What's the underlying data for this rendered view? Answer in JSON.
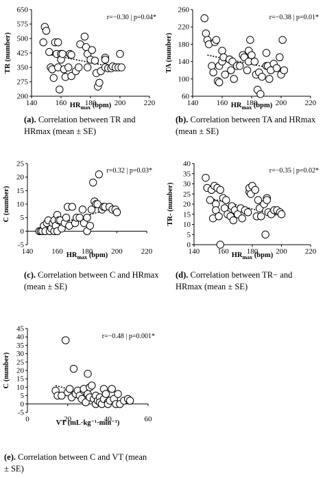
{
  "chart_data": [
    {
      "id": "a",
      "type": "scatter",
      "ylabel": "TR (number)",
      "xlabel_main": "HR",
      "xlabel_sub": "max",
      "xlabel_unit": " (bpm)",
      "xlim": [
        140,
        220
      ],
      "ylim": [
        200,
        650
      ],
      "x_ticks": [
        140,
        160,
        180,
        200,
        220
      ],
      "y_ticks": [
        200,
        275,
        350,
        425,
        500,
        575,
        650
      ],
      "stat": "r=−0.30 | p=0.04*",
      "trend": [
        [
          150,
          420
        ],
        [
          200,
          345
        ]
      ],
      "caption_label": "(a).",
      "caption_text": "Correlation between TR and HRmax (mean ± SE)",
      "points": [
        [
          148,
          480
        ],
        [
          149,
          560
        ],
        [
          150,
          540
        ],
        [
          152,
          430
        ],
        [
          153,
          350
        ],
        [
          154,
          340
        ],
        [
          155,
          295
        ],
        [
          156,
          480
        ],
        [
          157,
          420
        ],
        [
          158,
          480
        ],
        [
          158,
          350
        ],
        [
          159,
          235
        ],
        [
          160,
          420
        ],
        [
          160,
          390
        ],
        [
          161,
          420
        ],
        [
          162,
          340
        ],
        [
          163,
          300
        ],
        [
          165,
          350
        ],
        [
          166,
          420
        ],
        [
          167,
          415
        ],
        [
          167,
          305
        ],
        [
          170,
          330
        ],
        [
          172,
          350
        ],
        [
          173,
          470
        ],
        [
          176,
          510
        ],
        [
          177,
          455
        ],
        [
          178,
          420
        ],
        [
          178,
          350
        ],
        [
          180,
          390
        ],
        [
          181,
          440
        ],
        [
          183,
          385
        ],
        [
          184,
          320
        ],
        [
          185,
          250
        ],
        [
          186,
          270
        ],
        [
          187,
          330
        ],
        [
          190,
          400
        ],
        [
          190,
          390
        ],
        [
          190,
          350
        ],
        [
          192,
          345
        ],
        [
          194,
          345
        ],
        [
          195,
          355
        ],
        [
          197,
          350
        ],
        [
          199,
          350
        ],
        [
          200,
          420
        ],
        [
          201,
          350
        ]
      ]
    },
    {
      "id": "b",
      "type": "scatter",
      "ylabel": "TA (number)",
      "xlabel_main": "HR",
      "xlabel_sub": "max",
      "xlabel_unit": " (bpm)",
      "xlim": [
        140,
        220
      ],
      "ylim": [
        60,
        260
      ],
      "x_ticks": [
        140,
        160,
        180,
        200,
        220
      ],
      "y_ticks": [
        60,
        100,
        140,
        180,
        220,
        260
      ],
      "stat": "r=−0.38 | p=0.01*",
      "trend": [
        [
          150,
          155
        ],
        [
          200,
          120
        ]
      ],
      "caption_label": "(b).",
      "caption_text": "Correlation between TA and HRmax (mean ± SE)",
      "points": [
        [
          148,
          240
        ],
        [
          149,
          205
        ],
        [
          150,
          190
        ],
        [
          151,
          180
        ],
        [
          153,
          130
        ],
        [
          154,
          115
        ],
        [
          155,
          185
        ],
        [
          156,
          190
        ],
        [
          157,
          95
        ],
        [
          158,
          130
        ],
        [
          158,
          92
        ],
        [
          160,
          165
        ],
        [
          160,
          140
        ],
        [
          161,
          150
        ],
        [
          162,
          110
        ],
        [
          165,
          145
        ],
        [
          166,
          120
        ],
        [
          167,
          140
        ],
        [
          168,
          100
        ],
        [
          170,
          130
        ],
        [
          172,
          130
        ],
        [
          174,
          155
        ],
        [
          175,
          150
        ],
        [
          177,
          120
        ],
        [
          178,
          165
        ],
        [
          178,
          140
        ],
        [
          179,
          190
        ],
        [
          180,
          155
        ],
        [
          182,
          140
        ],
        [
          183,
          110
        ],
        [
          184,
          75
        ],
        [
          185,
          115
        ],
        [
          186,
          65
        ],
        [
          187,
          105
        ],
        [
          190,
          160
        ],
        [
          190,
          130
        ],
        [
          191,
          130
        ],
        [
          192,
          100
        ],
        [
          193,
          120
        ],
        [
          195,
          135
        ],
        [
          197,
          125
        ],
        [
          199,
          150
        ],
        [
          200,
          110
        ],
        [
          201,
          190
        ],
        [
          202,
          120
        ]
      ]
    },
    {
      "id": "c",
      "type": "scatter",
      "ylabel": "C (number)",
      "xlabel_main": "HR",
      "xlabel_sub": "max",
      "xlabel_unit": " (bpm)",
      "xlim": [
        140,
        220
      ],
      "ylim": [
        -5,
        25
      ],
      "x_ticks": [
        140,
        160,
        180,
        200,
        220
      ],
      "y_ticks": [
        -5,
        0,
        5,
        10,
        15,
        20,
        25
      ],
      "stat": "r=0.32 | p=0.03*",
      "trend": [
        [
          150,
          1
        ],
        [
          200,
          9
        ]
      ],
      "caption_label": "(c).",
      "caption_text": "Correlation between C and HRmax (mean ± SE)",
      "points": [
        [
          148,
          0
        ],
        [
          149,
          0
        ],
        [
          150,
          0
        ],
        [
          151,
          2
        ],
        [
          152,
          0
        ],
        [
          153,
          3
        ],
        [
          154,
          4
        ],
        [
          155,
          0
        ],
        [
          156,
          1
        ],
        [
          157,
          3
        ],
        [
          158,
          4
        ],
        [
          158,
          0
        ],
        [
          159,
          2
        ],
        [
          160,
          6
        ],
        [
          160,
          0
        ],
        [
          161,
          4
        ],
        [
          162,
          4
        ],
        [
          163,
          1
        ],
        [
          165,
          3
        ],
        [
          166,
          5
        ],
        [
          167,
          9
        ],
        [
          168,
          2
        ],
        [
          170,
          9
        ],
        [
          172,
          3
        ],
        [
          173,
          5
        ],
        [
          175,
          5
        ],
        [
          177,
          8
        ],
        [
          178,
          3
        ],
        [
          180,
          5
        ],
        [
          180,
          0
        ],
        [
          182,
          2
        ],
        [
          183,
          8
        ],
        [
          184,
          18
        ],
        [
          185,
          11
        ],
        [
          186,
          10
        ],
        [
          187,
          10
        ],
        [
          188,
          21
        ],
        [
          190,
          8
        ],
        [
          191,
          9
        ],
        [
          192,
          9
        ],
        [
          195,
          9
        ],
        [
          197,
          8
        ],
        [
          199,
          8
        ],
        [
          200,
          7
        ]
      ]
    },
    {
      "id": "d",
      "type": "scatter",
      "ylabel": "TR- (number)",
      "xlabel_main": "HR",
      "xlabel_sub": "max",
      "xlabel_unit": " (bpm)",
      "xlim": [
        140,
        220
      ],
      "ylim": [
        0,
        40
      ],
      "x_ticks": [
        140,
        160,
        180,
        200,
        220
      ],
      "y_ticks": [
        0,
        5,
        10,
        15,
        20,
        25,
        30,
        35,
        40
      ],
      "stat": "r=−0.35 | p=0.02*",
      "trend": [
        [
          150,
          23
        ],
        [
          200,
          14
        ]
      ],
      "caption_label": "(d).",
      "caption_text": "Correlation between TR− and HRmax (mean ± SE)",
      "points": [
        [
          148,
          33
        ],
        [
          149,
          28
        ],
        [
          151,
          22
        ],
        [
          152,
          27
        ],
        [
          153,
          13
        ],
        [
          154,
          29
        ],
        [
          155,
          20
        ],
        [
          155,
          17
        ],
        [
          156,
          28
        ],
        [
          157,
          14
        ],
        [
          158,
          0
        ],
        [
          158,
          27
        ],
        [
          160,
          23
        ],
        [
          161,
          18
        ],
        [
          162,
          22
        ],
        [
          163,
          15
        ],
        [
          165,
          14
        ],
        [
          166,
          19
        ],
        [
          167,
          12
        ],
        [
          168,
          17
        ],
        [
          170,
          15
        ],
        [
          172,
          18
        ],
        [
          173,
          13
        ],
        [
          175,
          17
        ],
        [
          177,
          16
        ],
        [
          178,
          26
        ],
        [
          178,
          28
        ],
        [
          179,
          25
        ],
        [
          180,
          29
        ],
        [
          182,
          27
        ],
        [
          183,
          14
        ],
        [
          184,
          22
        ],
        [
          185,
          18
        ],
        [
          186,
          14
        ],
        [
          188,
          20
        ],
        [
          189,
          5
        ],
        [
          190,
          23
        ],
        [
          190,
          22
        ],
        [
          191,
          16
        ],
        [
          193,
          15
        ],
        [
          195,
          17
        ],
        [
          197,
          17
        ],
        [
          199,
          16
        ],
        [
          200,
          15
        ]
      ]
    },
    {
      "id": "e",
      "type": "scatter",
      "ylabel": "C (number)",
      "xlabel_main": "VT",
      "xlabel_sub": "",
      "xlabel_unit": " (mL·kg⁻¹·min⁻¹)",
      "xlim": [
        0,
        60
      ],
      "ylim": [
        -5,
        45
      ],
      "x_ticks": [
        0,
        20,
        40,
        60
      ],
      "y_ticks": [
        -5,
        0,
        5,
        10,
        15,
        20,
        25,
        30,
        35,
        40,
        45
      ],
      "stat": "r=−0.48 | p=0.001*",
      "trend": [
        [
          14,
          11
        ],
        [
          48,
          0
        ]
      ],
      "caption_label": "(e).",
      "caption_text": "Correlation between C and VT (mean ± SE)",
      "points": [
        [
          14,
          8
        ],
        [
          15,
          5
        ],
        [
          17,
          5
        ],
        [
          19,
          38
        ],
        [
          20,
          7
        ],
        [
          21,
          9
        ],
        [
          22,
          4
        ],
        [
          23,
          21
        ],
        [
          24,
          6
        ],
        [
          25,
          8
        ],
        [
          26,
          5
        ],
        [
          27,
          3
        ],
        [
          28,
          8
        ],
        [
          28,
          9
        ],
        [
          29,
          1
        ],
        [
          30,
          18
        ],
        [
          30,
          6
        ],
        [
          31,
          10
        ],
        [
          31,
          4
        ],
        [
          32,
          11
        ],
        [
          33,
          3
        ],
        [
          34,
          0
        ],
        [
          34,
          5
        ],
        [
          35,
          2
        ],
        [
          36,
          4
        ],
        [
          36,
          1
        ],
        [
          37,
          0
        ],
        [
          38,
          9
        ],
        [
          38,
          3
        ],
        [
          39,
          6
        ],
        [
          40,
          1
        ],
        [
          40,
          0
        ],
        [
          41,
          2
        ],
        [
          42,
          9
        ],
        [
          43,
          3
        ],
        [
          44,
          0
        ],
        [
          45,
          6
        ],
        [
          46,
          0
        ],
        [
          48,
          2
        ],
        [
          50,
          3
        ],
        [
          51,
          2
        ]
      ]
    }
  ]
}
